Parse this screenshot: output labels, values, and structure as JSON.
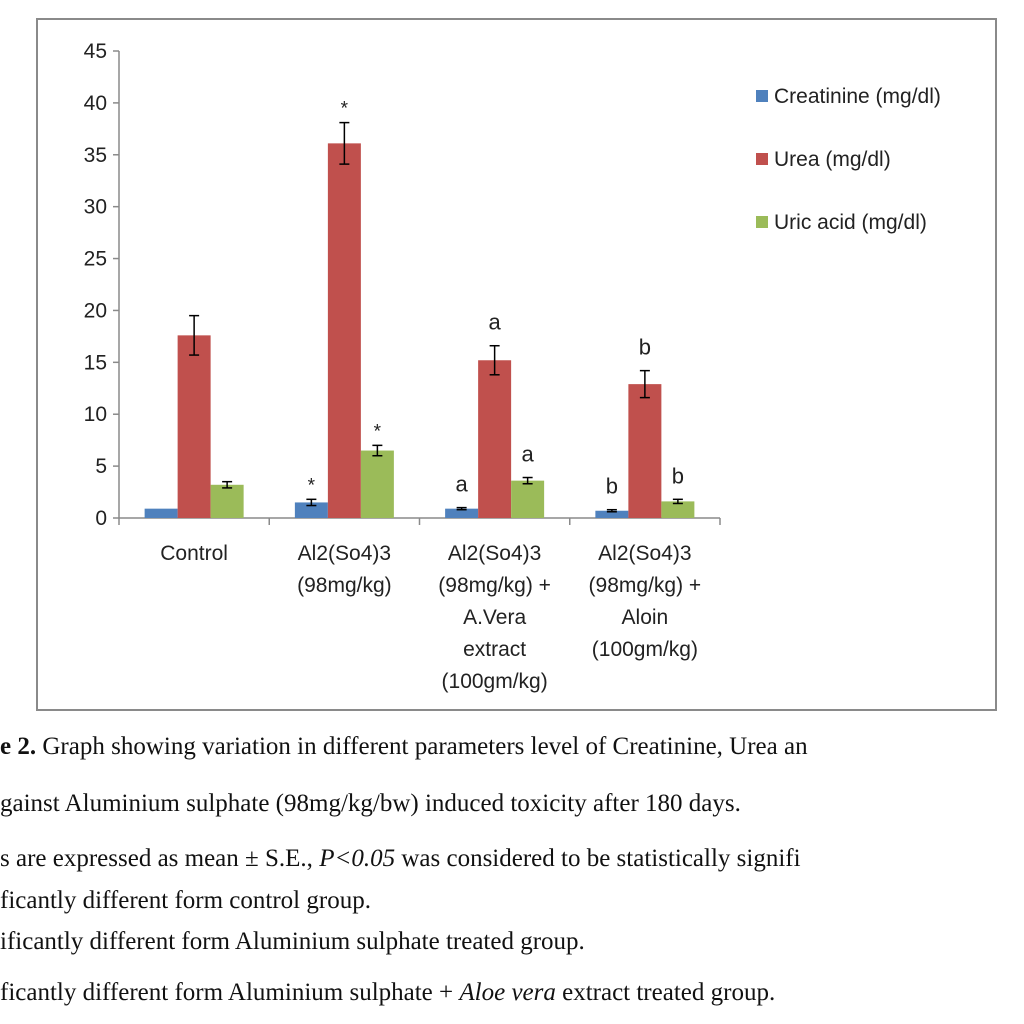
{
  "chart_data": {
    "type": "bar",
    "categories": [
      [
        "Control"
      ],
      [
        "Al2(So4)3",
        "(98mg/kg)"
      ],
      [
        "Al2(So4)3",
        "(98mg/kg) +",
        "A.Vera",
        "extract",
        "(100gm/kg)"
      ],
      [
        "Al2(So4)3",
        "(98mg/kg) +",
        "Aloin",
        "(100gm/kg)"
      ]
    ],
    "series": [
      {
        "name": "Creatinine (mg/dl)",
        "color": "#4f81bd",
        "values": [
          0.9,
          1.5,
          0.9,
          0.7
        ],
        "errors": [
          0,
          0.3,
          0.1,
          0.1
        ],
        "labels": [
          "",
          "*",
          "a",
          "b"
        ]
      },
      {
        "name": "Urea (mg/dl)",
        "color": "#c0504d",
        "values": [
          17.6,
          36.1,
          15.2,
          12.9
        ],
        "errors": [
          1.9,
          2.0,
          1.4,
          1.3
        ],
        "labels": [
          "",
          "*",
          "a",
          "b"
        ]
      },
      {
        "name": "Uric acid (mg/dl)",
        "color": "#9bbb59",
        "values": [
          3.2,
          6.5,
          3.6,
          1.6
        ],
        "errors": [
          0.3,
          0.5,
          0.3,
          0.2
        ],
        "labels": [
          "",
          "*",
          "a",
          "b"
        ]
      }
    ],
    "ylim": [
      0,
      45
    ],
    "yticks": [
      0,
      5,
      10,
      15,
      20,
      25,
      30,
      35,
      40,
      45
    ],
    "grid": false,
    "legend_position": "right"
  },
  "caption": {
    "line1_bold": "e 2.",
    "line1_text": " Graph showing variation in different parameters level of Creatinine, Urea an",
    "line2": "gainst Aluminium  sulphate (98mg/kg/bw) induced toxicity after 180 days.",
    "line3_pre": "s are expressed as mean ± S.E., ",
    "line3_ital": "P<0.05",
    "line3_post": " was considered to be statistically signifi",
    "line4": "ficantly different form control group.",
    "line5": "ificantly different form Aluminium sulphate treated group.",
    "line6_pre": "ficantly different form Aluminium  sulphate + ",
    "line6_ital": "Aloe vera",
    "line6_post": " extract treated group."
  }
}
